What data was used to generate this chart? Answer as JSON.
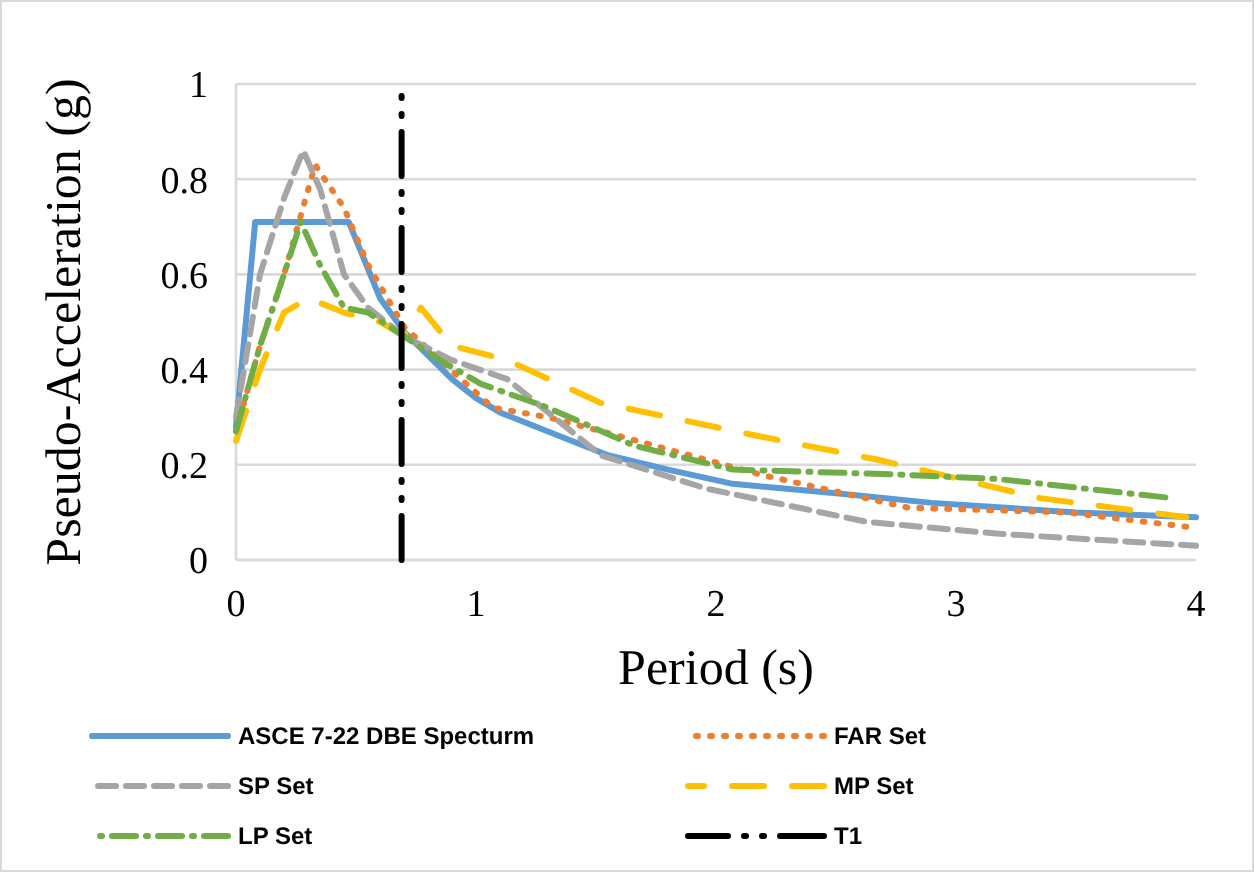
{
  "chart_data": {
    "type": "line",
    "xlabel": "Period (s)",
    "ylabel": "Pseudo-Acceleration (g)",
    "xlim": [
      0,
      4
    ],
    "xticks": [
      0,
      1,
      2,
      3,
      4
    ],
    "ylim": [
      0,
      1
    ],
    "yticks": [
      0,
      0.2,
      0.4,
      0.6,
      0.8,
      1
    ],
    "grid": "y",
    "legend": "bottom",
    "series": [
      {
        "name": "ASCE 7-22 DBE Specturm",
        "color": "#5b9bd5",
        "line_style": "solid",
        "x": [
          0,
          0.08,
          0.47,
          0.6,
          0.7,
          0.8,
          0.9,
          1,
          1.1,
          1.2,
          1.55,
          1.8,
          2.07,
          2.5,
          2.9,
          3.5,
          4
        ],
        "values": [
          0.28,
          0.71,
          0.71,
          0.55,
          0.48,
          0.43,
          0.38,
          0.34,
          0.31,
          0.29,
          0.22,
          0.19,
          0.16,
          0.14,
          0.12,
          0.1,
          0.09
        ]
      },
      {
        "name": "FAR Set",
        "color": "#ed7d31",
        "line_style": "dotted",
        "x": [
          0,
          0.1,
          0.2,
          0.33,
          0.45,
          0.55,
          0.7,
          0.85,
          1.07,
          1.3,
          1.6,
          2.18,
          2.8,
          3.46,
          3.96
        ],
        "values": [
          0.27,
          0.45,
          0.6,
          0.83,
          0.74,
          0.62,
          0.49,
          0.42,
          0.32,
          0.3,
          0.26,
          0.18,
          0.11,
          0.1,
          0.07
        ]
      },
      {
        "name": "SP Set",
        "color": "#a5a5a5",
        "line_style": "dashed",
        "x": [
          0,
          0.1,
          0.2,
          0.28,
          0.35,
          0.45,
          0.55,
          0.7,
          0.9,
          1.13,
          1.52,
          1.96,
          2.63,
          3.18,
          4
        ],
        "values": [
          0.3,
          0.6,
          0.76,
          0.86,
          0.78,
          0.6,
          0.53,
          0.47,
          0.42,
          0.38,
          0.22,
          0.15,
          0.08,
          0.055,
          0.03
        ]
      },
      {
        "name": "MP Set",
        "color": "#ffc000",
        "line_style": "longdash",
        "x": [
          0,
          0.1,
          0.2,
          0.3,
          0.45,
          0.6,
          0.7,
          0.77,
          0.9,
          1.13,
          1.52,
          2.18,
          2.68,
          3.35,
          3.96
        ],
        "values": [
          0.25,
          0.4,
          0.52,
          0.55,
          0.52,
          0.5,
          0.47,
          0.53,
          0.45,
          0.42,
          0.33,
          0.26,
          0.21,
          0.13,
          0.09
        ]
      },
      {
        "name": "LP Set",
        "color": "#70ad47",
        "line_style": "dashdot",
        "x": [
          0,
          0.1,
          0.2,
          0.27,
          0.35,
          0.45,
          0.55,
          0.7,
          0.85,
          1.02,
          1.3,
          1.66,
          2.07,
          2.74,
          3.18,
          3.9
        ],
        "values": [
          0.27,
          0.45,
          0.6,
          0.71,
          0.62,
          0.53,
          0.52,
          0.47,
          0.42,
          0.37,
          0.32,
          0.24,
          0.19,
          0.18,
          0.17,
          0.13
        ]
      },
      {
        "name": "T1",
        "color": "#000000",
        "line_style": "dashdotdot",
        "x": [
          0.69,
          0.69
        ],
        "values": [
          0,
          1
        ]
      }
    ]
  }
}
